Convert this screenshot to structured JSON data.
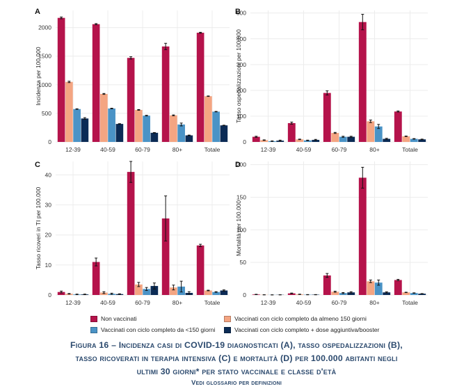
{
  "chart_data": [
    {
      "type": "bar",
      "panel": "A",
      "ylabel": "Incidenza per 100.000",
      "categories": [
        "12-39",
        "40-59",
        "60-79",
        "80+",
        "Totale"
      ],
      "ylim": [
        0,
        2300
      ],
      "yticks": [
        0,
        500,
        1000,
        1500,
        2000
      ],
      "series": [
        {
          "name": "Non vaccinati",
          "values": [
            2170,
            2060,
            1470,
            1670,
            1910
          ],
          "err": [
            15,
            10,
            20,
            55,
            8
          ]
        },
        {
          "name": "Vaccinati con ciclo completo da almeno 150 giorni",
          "values": [
            1050,
            840,
            560,
            465,
            800
          ],
          "err": [
            12,
            8,
            6,
            8,
            4
          ]
        },
        {
          "name": "Vaccinati con ciclo completo da <150 giorni",
          "values": [
            575,
            585,
            460,
            305,
            530
          ],
          "err": [
            5,
            5,
            6,
            25,
            4
          ]
        },
        {
          "name": "Vaccinati con ciclo completo + dose aggiuntiva/booster",
          "values": [
            410,
            315,
            160,
            115,
            290
          ],
          "err": [
            15,
            5,
            4,
            5,
            3
          ]
        }
      ]
    },
    {
      "type": "bar",
      "panel": "B",
      "ylabel": "Tasso ospedalizzazioni per 100.000",
      "categories": [
        "12-39",
        "40-59",
        "60-79",
        "80+",
        "Totale"
      ],
      "ylim": [
        0,
        510
      ],
      "yticks": [
        0,
        100,
        200,
        300,
        400,
        500
      ],
      "series": [
        {
          "name": "Non vaccinati",
          "values": [
            20,
            73,
            190,
            465,
            118
          ],
          "err": [
            2,
            4,
            8,
            30,
            2
          ]
        },
        {
          "name": "Vaccinati con ciclo completo da almeno 150 giorni",
          "values": [
            7,
            10,
            35,
            80,
            22
          ],
          "err": [
            1,
            1,
            2,
            5,
            1
          ]
        },
        {
          "name": "Vaccinati con ciclo completo da <150 giorni",
          "values": [
            3,
            6,
            20,
            60,
            12
          ],
          "err": [
            1,
            1,
            2,
            8,
            1
          ]
        },
        {
          "name": "Vaccinati con ciclo completo + dose aggiuntiva/booster",
          "values": [
            5,
            8,
            20,
            12,
            10
          ],
          "err": [
            2,
            2,
            2,
            2,
            1
          ]
        }
      ]
    },
    {
      "type": "bar",
      "panel": "C",
      "ylabel": "Tasso ricoveri in TI per 100.000",
      "categories": [
        "12-39",
        "40-59",
        "60-79",
        "80+",
        "Totale"
      ],
      "ylim": [
        0,
        44.5
      ],
      "yticks": [
        0,
        10,
        20,
        30,
        40
      ],
      "series": [
        {
          "name": "Non vaccinati",
          "values": [
            1.0,
            11.0,
            41.0,
            25.5,
            16.5
          ],
          "err": [
            0.3,
            1.3,
            3.5,
            7.5,
            0.4
          ]
        },
        {
          "name": "Vaccinati con ciclo completo da almeno 150 giorni",
          "values": [
            0.4,
            0.8,
            3.5,
            2.5,
            1.5
          ],
          "err": [
            0.1,
            0.3,
            0.7,
            0.8,
            0.1
          ]
        },
        {
          "name": "Vaccinati con ciclo completo da <150 giorni",
          "values": [
            0.2,
            0.4,
            2.0,
            2.8,
            1.0
          ],
          "err": [
            0.1,
            0.2,
            0.5,
            1.8,
            0.1
          ]
        },
        {
          "name": "Vaccinati con ciclo completo + dose aggiuntiva/booster",
          "values": [
            0.2,
            0.3,
            3.0,
            0.7,
            1.5
          ],
          "err": [
            0.1,
            0.1,
            1.0,
            0.4,
            0.2
          ]
        }
      ]
    },
    {
      "type": "bar",
      "panel": "D",
      "ylabel": "Mortalità per 100.000",
      "categories": [
        "12-39",
        "40-59",
        "60-79",
        "80+",
        "Totale"
      ],
      "ylim": [
        0,
        205
      ],
      "yticks": [
        0,
        50,
        100,
        150,
        200
      ],
      "series": [
        {
          "name": "Non vaccinati",
          "values": [
            0.8,
            2.5,
            30,
            180,
            23
          ],
          "err": [
            0.3,
            0.5,
            3,
            16,
            1
          ]
        },
        {
          "name": "Vaccinati con ciclo completo da almeno 150 giorni",
          "values": [
            0.3,
            1.0,
            5,
            21,
            4
          ],
          "err": [
            0.1,
            0.3,
            0.8,
            2,
            0.3
          ]
        },
        {
          "name": "Vaccinati con ciclo completo da <150 giorni",
          "values": [
            0.2,
            0.5,
            3,
            19,
            3
          ],
          "err": [
            0.1,
            0.2,
            0.8,
            4,
            0.3
          ]
        },
        {
          "name": "Vaccinati con ciclo completo + dose aggiuntiva/booster",
          "values": [
            0.3,
            0.5,
            4,
            4,
            2
          ],
          "err": [
            0.1,
            0.2,
            1,
            0.8,
            0.2
          ]
        }
      ]
    }
  ],
  "colors": {
    "series": [
      "#b5134b",
      "#f4a582",
      "#4a93c6",
      "#0b2b55"
    ],
    "grid": "#ececec",
    "caption": "#2c4a6e"
  },
  "legend": {
    "items": [
      "Non vaccinati",
      "Vaccinati con ciclo completo da almeno 150 giorni",
      "Vaccinati con ciclo completo da <150 giorni",
      "Vaccinati con ciclo completo + dose aggiuntiva/booster"
    ]
  },
  "caption": {
    "line1": "Figura 16 – Incidenza casi di COVID-19 diagnosticati (A), tasso ospedalizzazioni (B),",
    "line2": "tasso ricoverati in terapia intensiva (C) e mortalità (D) per 100.000 abitanti negli",
    "line3": "ultimi 30 giorni* per stato vaccinale e classe d'età",
    "glossary": "Vedi glossario per definizioni"
  }
}
